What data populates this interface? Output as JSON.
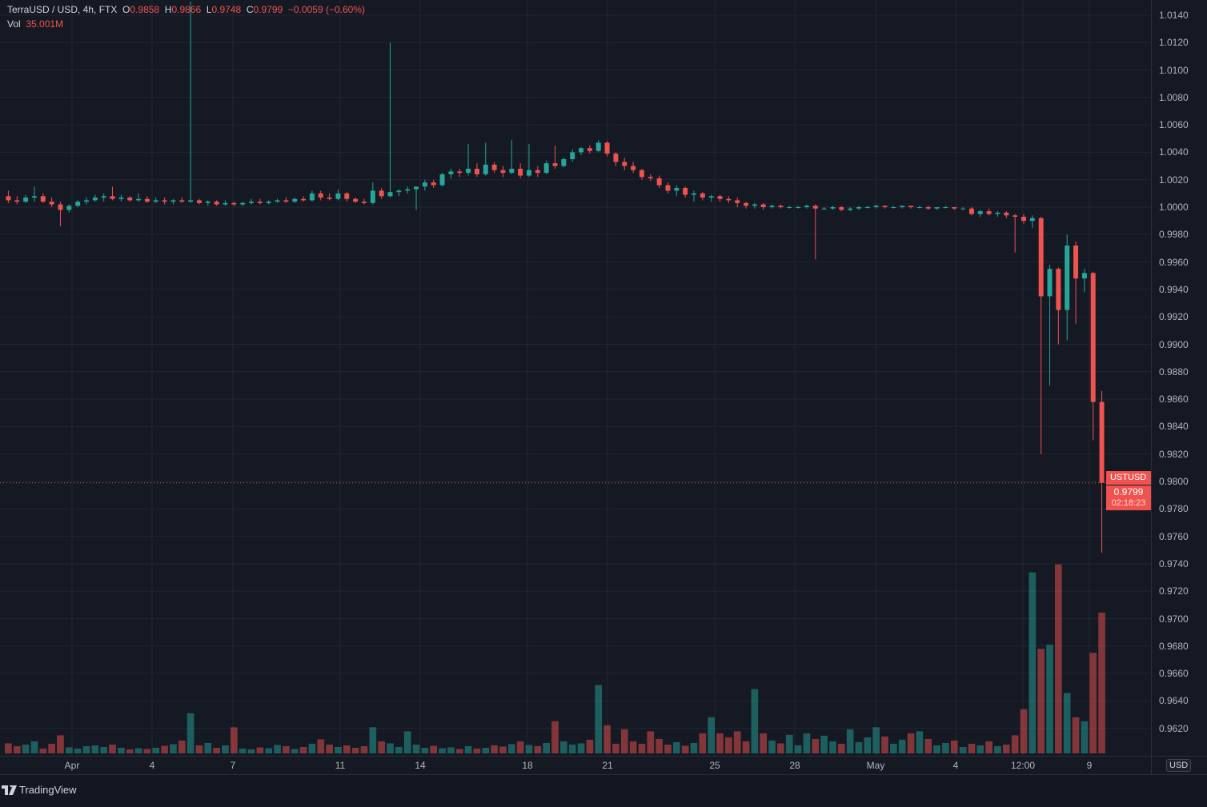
{
  "legend": {
    "symbol": "TerraUSD / USD, 4h, FTX",
    "o_label": "O",
    "o": "0.9858",
    "h_label": "H",
    "h": "0.9866",
    "l_label": "L",
    "l": "0.9748",
    "c_label": "C",
    "c": "0.9799",
    "change": "−0.0059 (−0.60%)",
    "vol_label": "Vol",
    "vol": "35.001M"
  },
  "currency_button": "USD",
  "last_price": {
    "symbol": "USTUSD",
    "price": "0.9799",
    "countdown": "02:18:23"
  },
  "price_labels": [
    "1.0140",
    "1.0120",
    "1.0100",
    "1.0080",
    "1.0060",
    "1.0040",
    "1.0020",
    "1.0000",
    "0.9980",
    "0.9960",
    "0.9940",
    "0.9920",
    "0.9900",
    "0.9880",
    "0.9860",
    "0.9840",
    "0.9820",
    "0.9800",
    "0.9780",
    "0.9760",
    "0.9740",
    "0.9720",
    "0.9700",
    "0.9680",
    "0.9660",
    "0.9640",
    "0.9620"
  ],
  "time_labels": [
    "Apr",
    "4",
    "7",
    "11",
    "14",
    "18",
    "21",
    "25",
    "28",
    "May",
    "4",
    "12:00",
    "9"
  ],
  "footer": {
    "brand": "TradingView"
  },
  "colors": {
    "up": "#26a69a",
    "down": "#ef5350",
    "background": "#151924",
    "grid": "#222632"
  },
  "chart_data": {
    "type": "candlestick",
    "interval": "4h",
    "price_range": [
      0.9605,
      1.0151
    ],
    "candles_ohlc": [
      [
        1.0008,
        1.0012,
        1.0003,
        1.0005
      ],
      [
        1.0005,
        1.0008,
        1.0002,
        1.0004
      ],
      [
        1.0004,
        1.0009,
        1.0003,
        1.0007
      ],
      [
        1.0007,
        1.0015,
        1.0004,
        1.0008
      ],
      [
        1.0008,
        1.001,
        1.0003,
        1.0004
      ],
      [
        1.0004,
        1.0007,
        1.0,
        1.0002
      ],
      [
        1.0002,
        1.0004,
        0.9986,
        0.9998
      ],
      [
        0.9998,
        1.0002,
        0.9996,
        1.0001
      ],
      [
        1.0001,
        1.0005,
        1.0,
        1.0004
      ],
      [
        1.0004,
        1.0007,
        1.0002,
        1.0005
      ],
      [
        1.0005,
        1.0009,
        1.0004,
        1.0007
      ],
      [
        1.0007,
        1.001,
        1.0004,
        1.0008
      ],
      [
        1.0008,
        1.0015,
        1.0005,
        1.0006
      ],
      [
        1.0006,
        1.0009,
        1.0004,
        1.0007
      ],
      [
        1.0007,
        1.0008,
        1.0004,
        1.0005
      ],
      [
        1.0005,
        1.001,
        1.0004,
        1.0006
      ],
      [
        1.0006,
        1.0008,
        1.0003,
        1.0004
      ],
      [
        1.0004,
        1.0007,
        1.0003,
        1.0005
      ],
      [
        1.0005,
        1.0007,
        1.0002,
        1.0004
      ],
      [
        1.0004,
        1.0006,
        1.0002,
        1.0005
      ],
      [
        1.0005,
        1.0007,
        1.0003,
        1.0004
      ],
      [
        1.0004,
        1.015,
        1.0003,
        1.0005
      ],
      [
        1.0005,
        1.0006,
        1.0002,
        1.0003
      ],
      [
        1.0003,
        1.0005,
        1.0001,
        1.0004
      ],
      [
        1.0004,
        1.0005,
        1.0001,
        1.0002
      ],
      [
        1.0002,
        1.0005,
        1.0001,
        1.0003
      ],
      [
        1.0003,
        1.0004,
        1.0001,
        1.0002
      ],
      [
        1.0002,
        1.0004,
        1.0001,
        1.0003
      ],
      [
        1.0003,
        1.0006,
        1.0002,
        1.0004
      ],
      [
        1.0004,
        1.0006,
        1.0002,
        1.0003
      ],
      [
        1.0003,
        1.0005,
        1.0002,
        1.0004
      ],
      [
        1.0004,
        1.0006,
        1.0003,
        1.0005
      ],
      [
        1.0005,
        1.0007,
        1.0003,
        1.0004
      ],
      [
        1.0004,
        1.0007,
        1.0003,
        1.0006
      ],
      [
        1.0006,
        1.0008,
        1.0004,
        1.0005
      ],
      [
        1.0005,
        1.0012,
        1.0004,
        1.001
      ],
      [
        1.001,
        1.0012,
        1.0005,
        1.0007
      ],
      [
        1.0007,
        1.001,
        1.0005,
        1.0006
      ],
      [
        1.0006,
        1.0013,
        1.0005,
        1.001
      ],
      [
        1.001,
        1.0011,
        1.0004,
        1.0006
      ],
      [
        1.0006,
        1.0007,
        1.0003,
        1.0004
      ],
      [
        1.0004,
        1.0006,
        1.0002,
        1.0003
      ],
      [
        1.0003,
        1.0018,
        1.0002,
        1.0012
      ],
      [
        1.0012,
        1.0014,
        1.0006,
        1.0008
      ],
      [
        1.0008,
        1.012,
        1.0007,
        1.0011
      ],
      [
        1.0011,
        1.0013,
        1.0008,
        1.0012
      ],
      [
        1.0012,
        1.0015,
        1.001,
        1.0013
      ],
      [
        1.0013,
        1.0015,
        0.9998,
        1.0015
      ],
      [
        1.0015,
        1.002,
        1.0012,
        1.0018
      ],
      [
        1.0018,
        1.002,
        1.0014,
        1.0016
      ],
      [
        1.0016,
        1.0025,
        1.0015,
        1.0024
      ],
      [
        1.0024,
        1.0028,
        1.0021,
        1.0026
      ],
      [
        1.0026,
        1.0028,
        1.0022,
        1.0025
      ],
      [
        1.0025,
        1.0046,
        1.0023,
        1.0028
      ],
      [
        1.0028,
        1.0032,
        1.0022,
        1.0024
      ],
      [
        1.0024,
        1.0047,
        1.0023,
        1.0031
      ],
      [
        1.0031,
        1.0033,
        1.0025,
        1.0027
      ],
      [
        1.0027,
        1.003,
        1.0022,
        1.0025
      ],
      [
        1.0025,
        1.0049,
        1.0024,
        1.0028
      ],
      [
        1.0028,
        1.0032,
        1.0021,
        1.0023
      ],
      [
        1.0023,
        1.0046,
        1.0022,
        1.0027
      ],
      [
        1.0027,
        1.003,
        1.0022,
        1.0025
      ],
      [
        1.0025,
        1.0034,
        1.0024,
        1.0032
      ],
      [
        1.0032,
        1.0045,
        1.0028,
        1.003
      ],
      [
        1.003,
        1.0036,
        1.0029,
        1.0035
      ],
      [
        1.0035,
        1.0042,
        1.0033,
        1.004
      ],
      [
        1.004,
        1.0044,
        1.0038,
        1.0043
      ],
      [
        1.0043,
        1.0045,
        1.0039,
        1.0041
      ],
      [
        1.0041,
        1.0049,
        1.004,
        1.0047
      ],
      [
        1.0047,
        1.0048,
        1.0037,
        1.0039
      ],
      [
        1.0039,
        1.004,
        1.003,
        1.0033
      ],
      [
        1.0033,
        1.0036,
        1.0027,
        1.003
      ],
      [
        1.003,
        1.0033,
        1.0025,
        1.0027
      ],
      [
        1.0027,
        1.0028,
        1.002,
        1.0022
      ],
      [
        1.0022,
        1.0024,
        1.0019,
        1.0021
      ],
      [
        1.0021,
        1.0023,
        1.0014,
        1.0016
      ],
      [
        1.0016,
        1.0018,
        1.001,
        1.0012
      ],
      [
        1.0012,
        1.0016,
        1.0008,
        1.0014
      ],
      [
        1.0014,
        1.0015,
        1.0007,
        1.0009
      ],
      [
        1.0009,
        1.0012,
        1.0004,
        1.001
      ],
      [
        1.001,
        1.0011,
        1.0005,
        1.0007
      ],
      [
        1.0007,
        1.0009,
        1.0004,
        1.0008
      ],
      [
        1.0008,
        1.0009,
        1.0004,
        1.0006
      ],
      [
        1.0006,
        1.0008,
        1.0003,
        1.0005
      ],
      [
        1.0005,
        1.0007,
        1.0,
        1.0003
      ],
      [
        1.0003,
        1.0004,
        0.9999,
        1.0001
      ],
      [
        1.0001,
        1.0003,
        0.9999,
        1.0002
      ],
      [
        1.0002,
        1.0003,
        0.9998,
        1.0
      ],
      [
        1.0,
        1.0002,
        0.9999,
        1.0001
      ],
      [
        1.0001,
        1.0002,
        0.9999,
        1.0
      ],
      [
        1.0,
        1.0001,
        0.9999,
        1.0
      ],
      [
        1.0,
        1.0001,
        0.9999,
        1.0
      ],
      [
        1.0,
        1.0002,
        0.9999,
        1.0001
      ],
      [
        1.0001,
        1.0002,
        0.9962,
        0.9999
      ],
      [
        0.9999,
        1.0,
        0.9998,
        0.9999
      ],
      [
        0.9999,
        1.0001,
        0.9998,
        1.0
      ],
      [
        1.0,
        1.0001,
        0.9997,
        0.9998
      ],
      [
        0.9998,
        1.0,
        0.9997,
        0.9999
      ],
      [
        0.9999,
        1.0001,
        0.9998,
        1.0
      ],
      [
        1.0,
        1.0001,
        0.9999,
        1.0
      ],
      [
        1.0,
        1.0002,
        0.9999,
        1.0001
      ],
      [
        1.0001,
        1.0001,
        0.9999,
        1.0
      ],
      [
        1.0,
        1.0001,
        0.9999,
        1.0
      ],
      [
        1.0,
        1.0001,
        0.9999,
        1.0001
      ],
      [
        1.0001,
        1.0001,
        0.9999,
        1.0
      ],
      [
        1.0,
        1.0001,
        0.9999,
        1.0
      ],
      [
        1.0,
        1.0001,
        0.9998,
        0.9999
      ],
      [
        0.9999,
        1.0,
        0.9998,
        1.0
      ],
      [
        1.0,
        1.0001,
        0.9999,
        1.0
      ],
      [
        1.0,
        1.0,
        0.9998,
        0.9999
      ],
      [
        0.9999,
        1.0,
        0.9998,
        0.9999
      ],
      [
        0.9999,
        1.0,
        0.9994,
        0.9995
      ],
      [
        0.9995,
        0.9998,
        0.9993,
        0.9997
      ],
      [
        0.9997,
        0.9999,
        0.9994,
        0.9995
      ],
      [
        0.9995,
        0.9997,
        0.9993,
        0.9996
      ],
      [
        0.9996,
        0.9997,
        0.9992,
        0.9994
      ],
      [
        0.9994,
        0.9995,
        0.9967,
        0.9993
      ],
      [
        0.9993,
        0.9995,
        0.9988,
        0.999
      ],
      [
        0.999,
        0.9994,
        0.9985,
        0.9992
      ],
      [
        0.9992,
        0.9993,
        0.982,
        0.9935
      ],
      [
        0.9935,
        0.9958,
        0.987,
        0.9955
      ],
      [
        0.9955,
        0.9956,
        0.99,
        0.9925
      ],
      [
        0.9925,
        0.998,
        0.9903,
        0.9972
      ],
      [
        0.9972,
        0.9975,
        0.9915,
        0.9948
      ],
      [
        0.9948,
        0.9955,
        0.9938,
        0.9952
      ],
      [
        0.9952,
        0.9953,
        0.983,
        0.9858
      ],
      [
        0.9858,
        0.9866,
        0.9748,
        0.9799
      ]
    ],
    "volume_millions": [
      2.5,
      1.8,
      2.2,
      3.0,
      1.2,
      2.4,
      4.5,
      1.5,
      1.2,
      1.8,
      2.0,
      1.6,
      2.2,
      1.4,
      1.0,
      1.3,
      1.1,
      1.4,
      1.9,
      2.3,
      3.2,
      10.0,
      2.0,
      2.6,
      1.4,
      2.0,
      6.5,
      1.2,
      1.0,
      1.5,
      1.3,
      2.1,
      1.8,
      1.1,
      1.6,
      2.4,
      3.5,
      2.2,
      1.6,
      2.0,
      1.4,
      1.8,
      6.5,
      3.0,
      2.5,
      1.6,
      5.5,
      2.2,
      1.4,
      1.9,
      1.3,
      1.5,
      1.1,
      1.8,
      1.2,
      1.4,
      2.0,
      1.7,
      2.3,
      3.0,
      2.1,
      1.8,
      2.6,
      8.0,
      3.0,
      2.2,
      2.5,
      3.4,
      17.0,
      7.0,
      2.4,
      6.0,
      3.0,
      2.4,
      5.5,
      3.6,
      2.2,
      2.8,
      1.9,
      2.6,
      5.0,
      9.0,
      5.0,
      4.0,
      5.5,
      3.0,
      16.0,
      5.0,
      3.2,
      2.5,
      4.6,
      2.0,
      5.0,
      3.6,
      4.4,
      3.0,
      2.4,
      6.0,
      2.8,
      4.0,
      6.5,
      4.2,
      2.4,
      3.4,
      5.0,
      5.5,
      3.6,
      2.0,
      2.6,
      3.2,
      1.6,
      2.4,
      2.0,
      3.0,
      1.8,
      2.2,
      4.5,
      11.0,
      45.0,
      26.0,
      27.0,
      47.0,
      15.0,
      9.0,
      8.0,
      25.0,
      35.001
    ]
  }
}
